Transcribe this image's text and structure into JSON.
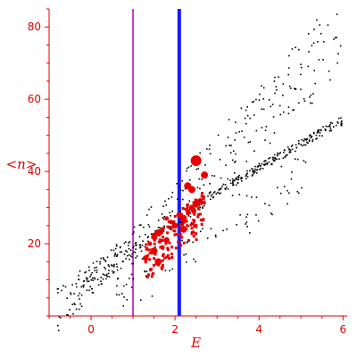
{
  "chart_data": {
    "type": "scatter",
    "title": "",
    "xlabel": "E",
    "ylabel": "<n>",
    "xlim": [
      -1.0,
      6.1
    ],
    "ylim": [
      0,
      85
    ],
    "x_ticks": [
      0,
      2,
      4,
      6
    ],
    "x_tick_labels": [
      "0",
      "2",
      "4",
      "6"
    ],
    "y_ticks": [
      20,
      40,
      60,
      80
    ],
    "y_tick_labels": [
      "20",
      "40",
      "60",
      "80"
    ],
    "grid": false,
    "legend": "none",
    "colors": {
      "axis": "#e00000",
      "lower_band": "#000000",
      "upper_band": "#000000",
      "highlight": "#e80000",
      "line_magenta": "#cc33cc",
      "line_blue": "#1a1aff"
    },
    "vertical_lines": [
      {
        "x": 1.0,
        "color": "#cc33cc",
        "style": "thin"
      },
      {
        "x": 2.1,
        "color": "#1a1aff",
        "style": "thick"
      }
    ],
    "lower_band": {
      "description": "dense linear band of small black dots",
      "x_range": [
        -0.8,
        6.0
      ],
      "y_start": 2,
      "y_end": 54,
      "points": [
        [
          -0.8,
          2
        ],
        [
          -0.5,
          5
        ],
        [
          -0.2,
          8
        ],
        [
          0.1,
          11
        ],
        [
          0.4,
          14
        ],
        [
          0.7,
          17
        ],
        [
          1.0,
          19
        ],
        [
          1.3,
          21
        ],
        [
          1.6,
          23
        ],
        [
          1.9,
          25
        ],
        [
          2.2,
          27
        ],
        [
          2.5,
          30
        ],
        [
          2.8,
          32
        ],
        [
          3.1,
          35
        ],
        [
          3.4,
          37
        ],
        [
          3.7,
          39
        ],
        [
          4.0,
          41
        ],
        [
          4.3,
          43
        ],
        [
          4.6,
          45
        ],
        [
          4.9,
          47
        ],
        [
          5.2,
          49
        ],
        [
          5.5,
          51
        ],
        [
          5.8,
          53
        ],
        [
          6.0,
          54
        ]
      ]
    },
    "upper_band": {
      "description": "wider scattered band of black dots, steeper",
      "points": [
        [
          0.0,
          10
        ],
        [
          0.5,
          15
        ],
        [
          1.0,
          20
        ],
        [
          1.5,
          26
        ],
        [
          2.0,
          31
        ],
        [
          2.5,
          37
        ],
        [
          3.0,
          43
        ],
        [
          3.5,
          49
        ],
        [
          4.0,
          55
        ],
        [
          4.5,
          60
        ],
        [
          5.0,
          66
        ],
        [
          5.5,
          73
        ],
        [
          6.0,
          82
        ]
      ]
    },
    "highlight_points": {
      "description": "red dots of varying size clustered near x 1-2.7",
      "points": [
        [
          1.4,
          20
        ],
        [
          1.5,
          22
        ],
        [
          1.6,
          23
        ],
        [
          1.7,
          24
        ],
        [
          1.8,
          21
        ],
        [
          1.5,
          18
        ],
        [
          1.9,
          26
        ],
        [
          2.0,
          25
        ],
        [
          2.2,
          27
        ],
        [
          2.3,
          29
        ],
        [
          2.4,
          30
        ],
        [
          2.5,
          31
        ],
        [
          2.6,
          32
        ],
        [
          2.3,
          36
        ],
        [
          2.5,
          43
        ],
        [
          2.7,
          39
        ],
        [
          1.3,
          16
        ],
        [
          1.6,
          15
        ],
        [
          1.7,
          19
        ],
        [
          2.1,
          28
        ],
        [
          2.2,
          24
        ],
        [
          1.8,
          27
        ],
        [
          2.4,
          35
        ]
      ]
    }
  }
}
